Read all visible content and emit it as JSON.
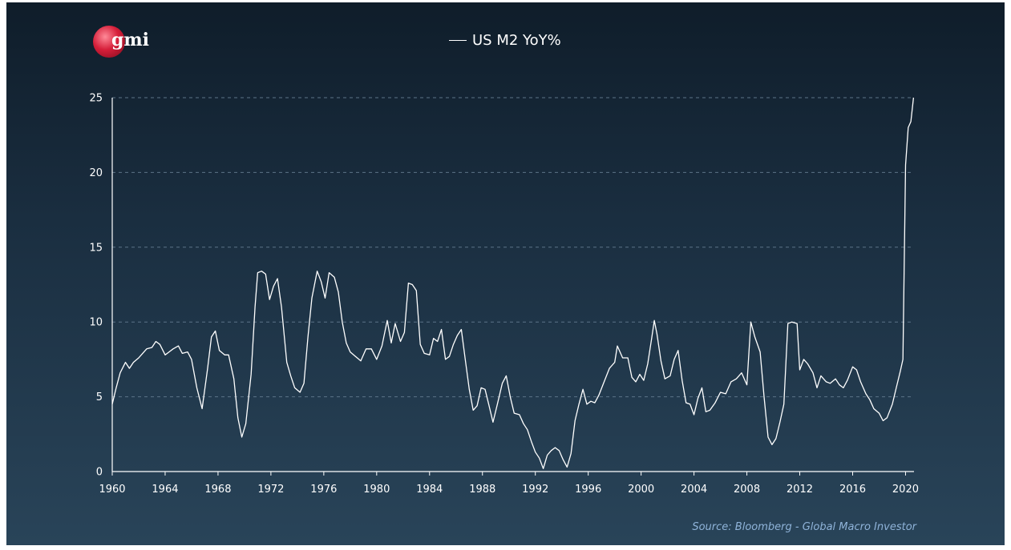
{
  "logo": {
    "text": "gmi"
  },
  "source": "Source: Bloomberg - Global Macro Investor",
  "colors": {
    "line": "#ffffff",
    "grid": "#5c7387",
    "source": "#8fb3d9"
  },
  "chart_data": {
    "type": "line",
    "title": "",
    "xlabel": "",
    "ylabel": "",
    "xlim": [
      1960,
      2020.7
    ],
    "ylim": [
      0,
      25
    ],
    "yticks": [
      0,
      5,
      10,
      15,
      20,
      25
    ],
    "xticks": [
      1960,
      1964,
      1968,
      1972,
      1976,
      1980,
      1984,
      1988,
      1992,
      1996,
      2000,
      2004,
      2008,
      2012,
      2016,
      2020
    ],
    "grid": "horizontal-dashed",
    "legend": "top-center",
    "series": [
      {
        "name": "US M2 YoY%",
        "color": "#ffffff",
        "points": [
          [
            1960.0,
            4.5
          ],
          [
            1960.3,
            5.6
          ],
          [
            1960.6,
            6.6
          ],
          [
            1961.0,
            7.3
          ],
          [
            1961.3,
            6.9
          ],
          [
            1961.6,
            7.3
          ],
          [
            1962.0,
            7.6
          ],
          [
            1962.3,
            7.9
          ],
          [
            1962.6,
            8.2
          ],
          [
            1963.0,
            8.3
          ],
          [
            1963.3,
            8.7
          ],
          [
            1963.6,
            8.5
          ],
          [
            1964.0,
            7.8
          ],
          [
            1964.3,
            8.0
          ],
          [
            1964.6,
            8.2
          ],
          [
            1965.0,
            8.4
          ],
          [
            1965.3,
            7.9
          ],
          [
            1965.7,
            8.0
          ],
          [
            1966.0,
            7.5
          ],
          [
            1966.4,
            5.6
          ],
          [
            1966.8,
            4.2
          ],
          [
            1967.2,
            6.8
          ],
          [
            1967.5,
            9.0
          ],
          [
            1967.8,
            9.4
          ],
          [
            1968.1,
            8.1
          ],
          [
            1968.5,
            7.8
          ],
          [
            1968.8,
            7.8
          ],
          [
            1969.2,
            6.2
          ],
          [
            1969.5,
            3.6
          ],
          [
            1969.8,
            2.3
          ],
          [
            1970.1,
            3.2
          ],
          [
            1970.5,
            6.5
          ],
          [
            1970.8,
            11.0
          ],
          [
            1971.0,
            13.3
          ],
          [
            1971.3,
            13.4
          ],
          [
            1971.6,
            13.2
          ],
          [
            1971.9,
            11.5
          ],
          [
            1972.2,
            12.4
          ],
          [
            1972.5,
            12.9
          ],
          [
            1972.8,
            11.0
          ],
          [
            1973.2,
            7.3
          ],
          [
            1973.5,
            6.4
          ],
          [
            1973.8,
            5.6
          ],
          [
            1974.2,
            5.3
          ],
          [
            1974.5,
            5.9
          ],
          [
            1974.8,
            9.0
          ],
          [
            1975.1,
            11.6
          ],
          [
            1975.5,
            13.4
          ],
          [
            1975.8,
            12.7
          ],
          [
            1976.1,
            11.6
          ],
          [
            1976.4,
            13.3
          ],
          [
            1976.8,
            13.0
          ],
          [
            1977.1,
            12.0
          ],
          [
            1977.4,
            10.0
          ],
          [
            1977.7,
            8.6
          ],
          [
            1978.0,
            8.0
          ],
          [
            1978.4,
            7.7
          ],
          [
            1978.8,
            7.4
          ],
          [
            1979.2,
            8.2
          ],
          [
            1979.6,
            8.2
          ],
          [
            1980.0,
            7.5
          ],
          [
            1980.4,
            8.4
          ],
          [
            1980.8,
            10.1
          ],
          [
            1981.1,
            8.6
          ],
          [
            1981.4,
            9.9
          ],
          [
            1981.8,
            8.7
          ],
          [
            1982.1,
            9.3
          ],
          [
            1982.4,
            12.6
          ],
          [
            1982.7,
            12.5
          ],
          [
            1983.0,
            12.1
          ],
          [
            1983.3,
            8.5
          ],
          [
            1983.6,
            7.9
          ],
          [
            1984.0,
            7.8
          ],
          [
            1984.3,
            8.9
          ],
          [
            1984.6,
            8.7
          ],
          [
            1984.9,
            9.5
          ],
          [
            1985.2,
            7.5
          ],
          [
            1985.5,
            7.7
          ],
          [
            1985.8,
            8.5
          ],
          [
            1986.1,
            9.1
          ],
          [
            1986.4,
            9.5
          ],
          [
            1986.7,
            7.5
          ],
          [
            1987.0,
            5.5
          ],
          [
            1987.3,
            4.1
          ],
          [
            1987.6,
            4.4
          ],
          [
            1987.9,
            5.6
          ],
          [
            1988.2,
            5.5
          ],
          [
            1988.5,
            4.4
          ],
          [
            1988.8,
            3.3
          ],
          [
            1989.1,
            4.4
          ],
          [
            1989.5,
            5.9
          ],
          [
            1989.8,
            6.4
          ],
          [
            1990.1,
            5.0
          ],
          [
            1990.4,
            3.9
          ],
          [
            1990.8,
            3.8
          ],
          [
            1991.1,
            3.2
          ],
          [
            1991.4,
            2.8
          ],
          [
            1991.7,
            2.0
          ],
          [
            1992.0,
            1.3
          ],
          [
            1992.3,
            0.9
          ],
          [
            1992.6,
            0.2
          ],
          [
            1992.9,
            1.1
          ],
          [
            1993.2,
            1.4
          ],
          [
            1993.5,
            1.6
          ],
          [
            1993.8,
            1.4
          ],
          [
            1994.1,
            0.8
          ],
          [
            1994.4,
            0.3
          ],
          [
            1994.7,
            1.2
          ],
          [
            1995.0,
            3.4
          ],
          [
            1995.3,
            4.5
          ],
          [
            1995.6,
            5.5
          ],
          [
            1995.9,
            4.5
          ],
          [
            1996.2,
            4.7
          ],
          [
            1996.5,
            4.6
          ],
          [
            1996.8,
            5.1
          ],
          [
            1997.2,
            6.0
          ],
          [
            1997.6,
            6.9
          ],
          [
            1998.0,
            7.3
          ],
          [
            1998.2,
            8.4
          ],
          [
            1998.6,
            7.6
          ],
          [
            1999.0,
            7.6
          ],
          [
            1999.3,
            6.3
          ],
          [
            1999.6,
            6.0
          ],
          [
            1999.9,
            6.5
          ],
          [
            2000.2,
            6.1
          ],
          [
            2000.5,
            7.2
          ],
          [
            2000.8,
            8.9
          ],
          [
            2001.0,
            10.1
          ],
          [
            2001.2,
            9.2
          ],
          [
            2001.5,
            7.4
          ],
          [
            2001.8,
            6.2
          ],
          [
            2002.2,
            6.4
          ],
          [
            2002.5,
            7.5
          ],
          [
            2002.8,
            8.1
          ],
          [
            2003.1,
            6.1
          ],
          [
            2003.4,
            4.6
          ],
          [
            2003.7,
            4.5
          ],
          [
            2004.0,
            3.8
          ],
          [
            2004.3,
            4.9
          ],
          [
            2004.6,
            5.6
          ],
          [
            2004.9,
            4.0
          ],
          [
            2005.2,
            4.1
          ],
          [
            2005.6,
            4.6
          ],
          [
            2006.0,
            5.3
          ],
          [
            2006.4,
            5.2
          ],
          [
            2006.8,
            6.0
          ],
          [
            2007.2,
            6.2
          ],
          [
            2007.6,
            6.6
          ],
          [
            2008.0,
            5.8
          ],
          [
            2008.3,
            10.0
          ],
          [
            2008.6,
            9.0
          ],
          [
            2009.0,
            8.0
          ],
          [
            2009.3,
            5.0
          ],
          [
            2009.6,
            2.3
          ],
          [
            2009.9,
            1.8
          ],
          [
            2010.2,
            2.2
          ],
          [
            2010.5,
            3.3
          ],
          [
            2010.8,
            4.5
          ],
          [
            2011.1,
            9.9
          ],
          [
            2011.4,
            10.0
          ],
          [
            2011.8,
            9.9
          ],
          [
            2012.0,
            6.8
          ],
          [
            2012.3,
            7.5
          ],
          [
            2012.6,
            7.2
          ],
          [
            2013.0,
            6.6
          ],
          [
            2013.3,
            5.6
          ],
          [
            2013.6,
            6.4
          ],
          [
            2014.0,
            6.0
          ],
          [
            2014.3,
            5.9
          ],
          [
            2014.7,
            6.2
          ],
          [
            2015.0,
            5.8
          ],
          [
            2015.3,
            5.6
          ],
          [
            2015.6,
            6.1
          ],
          [
            2016.0,
            7.0
          ],
          [
            2016.3,
            6.8
          ],
          [
            2016.6,
            6.0
          ],
          [
            2017.0,
            5.2
          ],
          [
            2017.3,
            4.8
          ],
          [
            2017.6,
            4.2
          ],
          [
            2018.0,
            3.9
          ],
          [
            2018.3,
            3.4
          ],
          [
            2018.6,
            3.6
          ],
          [
            2019.0,
            4.5
          ],
          [
            2019.3,
            5.6
          ],
          [
            2019.6,
            6.7
          ],
          [
            2019.8,
            7.5
          ],
          [
            2020.0,
            20.5
          ],
          [
            2020.2,
            23.0
          ],
          [
            2020.4,
            23.4
          ],
          [
            2020.6,
            25.0
          ]
        ]
      }
    ]
  }
}
